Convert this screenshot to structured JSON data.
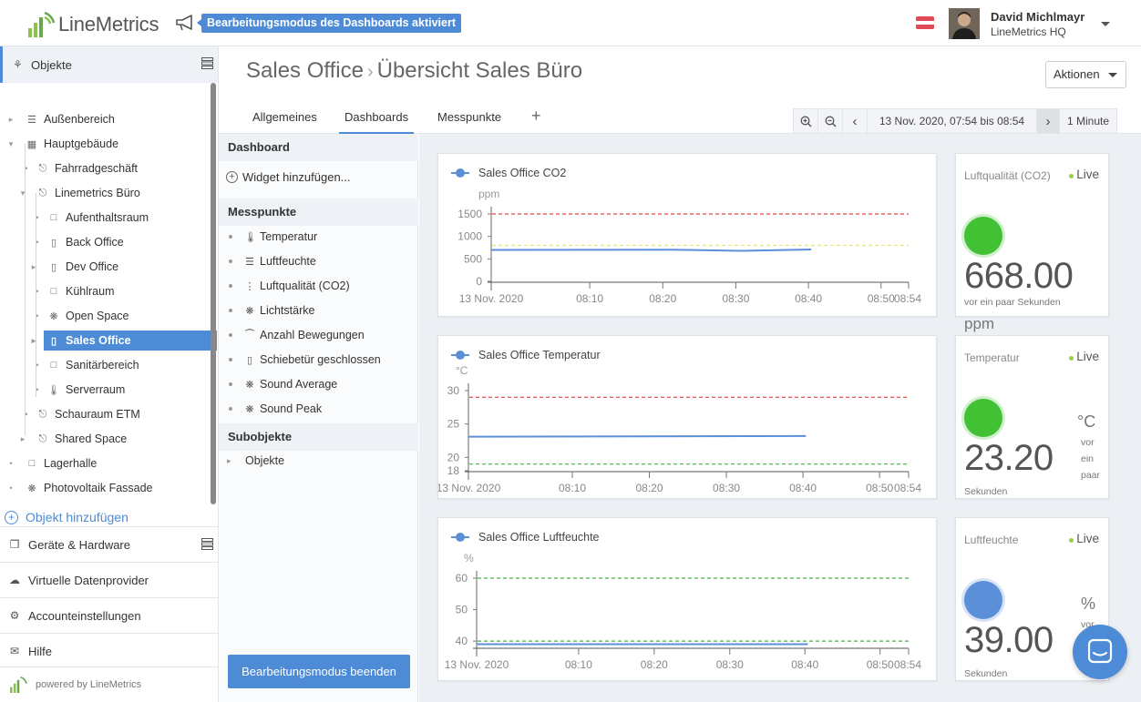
{
  "app": {
    "logo_text": "LineMetrics",
    "edit_banner": "Bearbeitungsmodus des Dashboards aktiviert",
    "user_name": "David Michlmayr",
    "user_org": "LineMetrics HQ"
  },
  "sidebar": {
    "header": "Objekte",
    "tree": [
      {
        "label": "Außenbereich",
        "icon": "sensor-group-icon"
      },
      {
        "label": "Hauptgebäude",
        "icon": "building-icon"
      },
      {
        "label": "Fahrradgeschäft",
        "icon": "store-icon"
      },
      {
        "label": "Linemetrics Büro",
        "icon": "store-icon"
      },
      {
        "label": "Aufenthaltsraum",
        "icon": "room-icon"
      },
      {
        "label": "Back Office",
        "icon": "door-icon"
      },
      {
        "label": "Dev Office",
        "icon": "door-icon"
      },
      {
        "label": "Kühlraum",
        "icon": "room-icon"
      },
      {
        "label": "Open Space",
        "icon": "light-icon"
      },
      {
        "label": "Sales Office",
        "icon": "door-icon"
      },
      {
        "label": "Sanitärbereich",
        "icon": "room-icon"
      },
      {
        "label": "Serverraum",
        "icon": "thermometer-icon"
      },
      {
        "label": "Schauraum ETM",
        "icon": "store-icon"
      },
      {
        "label": "Shared Space",
        "icon": "store-icon"
      },
      {
        "label": "Lagerhalle",
        "icon": "room-icon"
      },
      {
        "label": "Photovoltaik Fassade",
        "icon": "light-icon"
      }
    ],
    "add_object": "Objekt hinzufügen",
    "sections": [
      "Geräte & Hardware",
      "Virtuelle Datenprovider",
      "Accounteinstellungen",
      "Hilfe"
    ],
    "powered_by": "powered by LineMetrics"
  },
  "header": {
    "breadcrumb_parent": "Sales Office",
    "breadcrumb_current": "Übersicht Sales Büro",
    "actions_label": "Aktionen",
    "tabs": [
      "Allgemeines",
      "Dashboards",
      "Messpunkte"
    ],
    "time_range": "13 Nov. 2020, 07:54 bis 08:54",
    "interval": "1 Minute"
  },
  "panel": {
    "dashboard_header": "Dashboard",
    "add_widget": "Widget hinzufügen...",
    "messpunkte_header": "Messpunkte",
    "messpunkte": [
      {
        "label": "Temperatur",
        "icon": "thermometer-icon"
      },
      {
        "label": "Luftfeuchte",
        "icon": "humidity-icon"
      },
      {
        "label": "Luftqualität (CO2)",
        "icon": "co2-icon"
      },
      {
        "label": "Lichtstärke",
        "icon": "light-icon"
      },
      {
        "label": "Anzahl Bewegungen",
        "icon": "motion-icon"
      },
      {
        "label": "Schiebetür geschlossen",
        "icon": "door-icon"
      },
      {
        "label": "Sound Average",
        "icon": "sound-icon"
      },
      {
        "label": "Sound Peak",
        "icon": "sound-icon"
      }
    ],
    "subobjekte_header": "Subobjekte",
    "subobjekte": [
      "Objekte"
    ],
    "end_button": "Bearbeitungsmodus beenden"
  },
  "colors": {
    "accent": "#4d8bd6",
    "series": "#5b8fd8",
    "limit_high": "#e0413c",
    "limit_low": "#47b047",
    "limit_mid": "#e8e36b",
    "kpi_green": "#42c135"
  },
  "chart_data": [
    {
      "type": "line",
      "title": "Sales Office CO2",
      "ylabel": "ppm",
      "ylim": [
        0,
        1500
      ],
      "yticks": [
        "1500",
        "1000",
        "500",
        "0"
      ],
      "xticks": [
        "13 Nov. 2020",
        "08:10",
        "08:20",
        "08:30",
        "08:40",
        "08:50",
        "08:54"
      ],
      "series": [
        {
          "name": "Sales Office CO2",
          "x": [
            "07:54",
            "08:20",
            "08:30",
            "08:40"
          ],
          "values": [
            700,
            705,
            680,
            710
          ]
        }
      ],
      "thresholds": [
        1500,
        800
      ]
    },
    {
      "type": "line",
      "title": "Sales Office Temperatur",
      "ylabel": "°C",
      "ylim": [
        18,
        30
      ],
      "yticks": [
        "30",
        "25",
        "20",
        "18"
      ],
      "xticks": [
        "13 Nov. 2020",
        "08:10",
        "08:20",
        "08:30",
        "08:40",
        "08:50",
        "08:54"
      ],
      "series": [
        {
          "name": "Sales Office Temperatur",
          "x": [
            "07:54",
            "08:40"
          ],
          "values": [
            23.1,
            23.2
          ]
        }
      ],
      "thresholds": [
        29,
        19
      ]
    },
    {
      "type": "line",
      "title": "Sales Office Luftfeuchte",
      "ylabel": "%",
      "ylim": [
        38,
        60
      ],
      "yticks": [
        "60",
        "50",
        "40"
      ],
      "xticks": [
        "13 Nov. 2020",
        "08:10",
        "08:20",
        "08:30",
        "08:40",
        "08:50",
        "08:54"
      ],
      "series": [
        {
          "name": "Sales Office Luftfeuchte",
          "x": [
            "07:54",
            "08:40"
          ],
          "values": [
            39.0,
            39.0
          ]
        }
      ],
      "thresholds": [
        60,
        40
      ]
    }
  ],
  "kpis": [
    {
      "name": "Luftqualität (CO2)",
      "live": "Live",
      "value": "668.00",
      "sub": "vor ein paar Sekunden",
      "unit": "ppm"
    },
    {
      "name": "Temperatur",
      "live": "Live",
      "value": "23.20",
      "unit": "°C",
      "side": "vor\nein\npaar",
      "sub": "Sekunden"
    },
    {
      "name": "Luftfeuchte",
      "live": "Live",
      "value": "39.00",
      "unit": "%",
      "side": "vor",
      "sub": "Sekunden"
    }
  ]
}
